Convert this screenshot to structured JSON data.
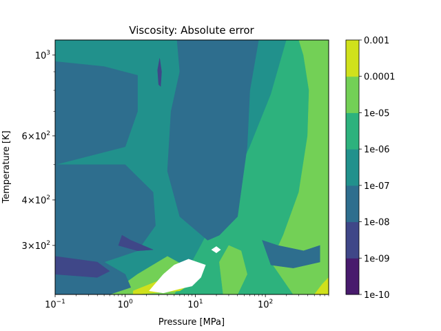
{
  "chart_data": {
    "type": "contour",
    "title": "Viscosity: Absolute error",
    "xlabel": "Pressure [MPa]",
    "ylabel": "Temperature [K]",
    "xscale": "log",
    "yscale": "log",
    "xlim": [
      0.1,
      800
    ],
    "ylim": [
      220,
      1100
    ],
    "x_ticks": [
      {
        "value": 0.1,
        "base": "10",
        "exp": "−1"
      },
      {
        "value": 1,
        "base": "10",
        "exp": "0"
      },
      {
        "value": 10,
        "base": "10",
        "exp": "1"
      },
      {
        "value": 100,
        "base": "10",
        "exp": "2"
      }
    ],
    "y_ticks": [
      {
        "value": 1000,
        "pre": "",
        "base": "10",
        "exp": "3"
      },
      {
        "value": 600,
        "pre": "6×",
        "base": "10",
        "exp": "2"
      },
      {
        "value": 400,
        "pre": "4×",
        "base": "10",
        "exp": "2"
      },
      {
        "value": 300,
        "pre": "3×",
        "base": "10",
        "exp": "2"
      }
    ],
    "colorbar": {
      "levels": [
        "1e-10",
        "1e-09",
        "1e-08",
        "1e-07",
        "1e-06",
        "1e-05",
        "0.0001",
        "0.001"
      ],
      "colors": [
        "#481b6d",
        "#3f4788",
        "#2e6e8e",
        "#21918c",
        "#2db27d",
        "#73d056",
        "#d0e11c"
      ]
    },
    "regions": [
      {
        "band": "1e-07 to 1e-06",
        "color": "#21918c",
        "polygon": [
          [
            0.1,
            220
          ],
          [
            800,
            220
          ],
          [
            800,
            1100
          ],
          [
            0.1,
            1100
          ]
        ]
      },
      {
        "band": "1e-06 to 1e-05",
        "color": "#2db27d",
        "polygon": [
          [
            5,
            220
          ],
          [
            12,
            300
          ],
          [
            30,
            420
          ],
          [
            60,
            560
          ],
          [
            120,
            780
          ],
          [
            200,
            1100
          ],
          [
            800,
            1100
          ],
          [
            800,
            220
          ]
        ]
      },
      {
        "band": "1e-05 to 0.0001",
        "color": "#73d056",
        "polygon": [
          [
            300,
            1100
          ],
          [
            800,
            1100
          ],
          [
            800,
            220
          ],
          [
            250,
            220
          ],
          [
            120,
            270
          ],
          [
            180,
            320
          ],
          [
            300,
            420
          ],
          [
            400,
            600
          ],
          [
            420,
            800
          ],
          [
            350,
            1000
          ]
        ]
      },
      {
        "band": "1e-05 to 0.0001",
        "color": "#73d056",
        "polygon": [
          [
            0.6,
            220
          ],
          [
            5,
            220
          ],
          [
            8,
            260
          ],
          [
            4,
            280
          ],
          [
            1.5,
            250
          ]
        ]
      },
      {
        "band": "1e-05 to 0.0001",
        "color": "#73d056",
        "polygon": [
          [
            25,
            220
          ],
          [
            40,
            220
          ],
          [
            55,
            250
          ],
          [
            45,
            290
          ],
          [
            30,
            300
          ],
          [
            22,
            270
          ]
        ]
      },
      {
        "band": "1e-08 to 1e-07",
        "color": "#2e6e8e",
        "polygon": [
          [
            0.1,
            1100
          ],
          [
            0.1,
            960
          ],
          [
            0.5,
            930
          ],
          [
            1.5,
            880
          ],
          [
            1.5,
            700
          ],
          [
            1,
            560
          ],
          [
            0.1,
            500
          ]
        ]
      },
      {
        "band": "1e-08 to 1e-07",
        "color": "#2e6e8e",
        "polygon": [
          [
            0.8,
            1100
          ],
          [
            5.5,
            1100
          ],
          [
            6,
            900
          ],
          [
            4.5,
            700
          ],
          [
            4,
            480
          ],
          [
            6,
            360
          ],
          [
            15,
            310
          ],
          [
            22,
            320
          ],
          [
            40,
            360
          ],
          [
            55,
            560
          ],
          [
            60,
            800
          ],
          [
            80,
            1100
          ],
          [
            0.8,
            1100
          ]
        ]
      },
      {
        "band": "1e-08 to 1e-07",
        "color": "#2e6e8e",
        "polygon": [
          [
            0.1,
            500
          ],
          [
            1,
            500
          ],
          [
            2.5,
            420
          ],
          [
            2.7,
            340
          ],
          [
            1.5,
            290
          ],
          [
            0.5,
            270
          ],
          [
            0.1,
            260
          ]
        ]
      },
      {
        "band": "1e-08 to 1e-07",
        "color": "#2e6e8e",
        "polygon": [
          [
            0.1,
            260
          ],
          [
            0.5,
            270
          ],
          [
            1,
            250
          ],
          [
            1.2,
            230
          ],
          [
            0.6,
            220
          ],
          [
            0.1,
            220
          ]
        ]
      },
      {
        "band": "1e-08 to 1e-07",
        "color": "#2e6e8e",
        "polygon": [
          [
            90,
            310
          ],
          [
            150,
            300
          ],
          [
            350,
            290
          ],
          [
            600,
            300
          ],
          [
            600,
            270
          ],
          [
            250,
            260
          ],
          [
            120,
            265
          ]
        ]
      },
      {
        "band": "1e-09 to 1e-08",
        "color": "#3f4788",
        "polygon": [
          [
            0.1,
            280
          ],
          [
            0.4,
            270
          ],
          [
            0.6,
            255
          ],
          [
            0.4,
            245
          ],
          [
            0.1,
            250
          ]
        ]
      },
      {
        "band": "1e-09 to 1e-08",
        "color": "#3f4788",
        "polygon": [
          [
            0.8,
            300
          ],
          [
            1.5,
            290
          ],
          [
            2.5,
            292
          ],
          [
            1.2,
            310
          ],
          [
            0.9,
            320
          ]
        ]
      },
      {
        "band": "1e-09 to 1e-08",
        "color": "#3f4788",
        "polygon": [
          [
            2.9,
            910
          ],
          [
            3.1,
            980
          ],
          [
            3.3,
            900
          ],
          [
            3.2,
            820
          ],
          [
            3,
            830
          ]
        ]
      },
      {
        "band": "0.0001 to 0.001",
        "color": "#d0e11c",
        "polygon": [
          [
            1.3,
            225
          ],
          [
            3,
            240
          ],
          [
            6,
            250
          ],
          [
            10,
            240
          ],
          [
            6,
            225
          ],
          [
            1.3,
            220
          ]
        ]
      },
      {
        "band": "0.0001 to 0.001",
        "color": "#d0e11c",
        "polygon": [
          [
            500,
            220
          ],
          [
            800,
            220
          ],
          [
            800,
            245
          ],
          [
            650,
            235
          ]
        ]
      },
      {
        "band": "above 0.001 (blank)",
        "color": "#ffffff",
        "polygon": [
          [
            2.2,
            225
          ],
          [
            3.5,
            250
          ],
          [
            5,
            265
          ],
          [
            8,
            275
          ],
          [
            14,
            265
          ],
          [
            12,
            245
          ],
          [
            9,
            232
          ],
          [
            6,
            228
          ],
          [
            3.5,
            222
          ]
        ]
      },
      {
        "band": "above 0.001 (blank)",
        "color": "#ffffff",
        "polygon": [
          [
            17,
            292
          ],
          [
            20,
            298
          ],
          [
            23,
            292
          ],
          [
            20,
            286
          ]
        ]
      }
    ]
  }
}
